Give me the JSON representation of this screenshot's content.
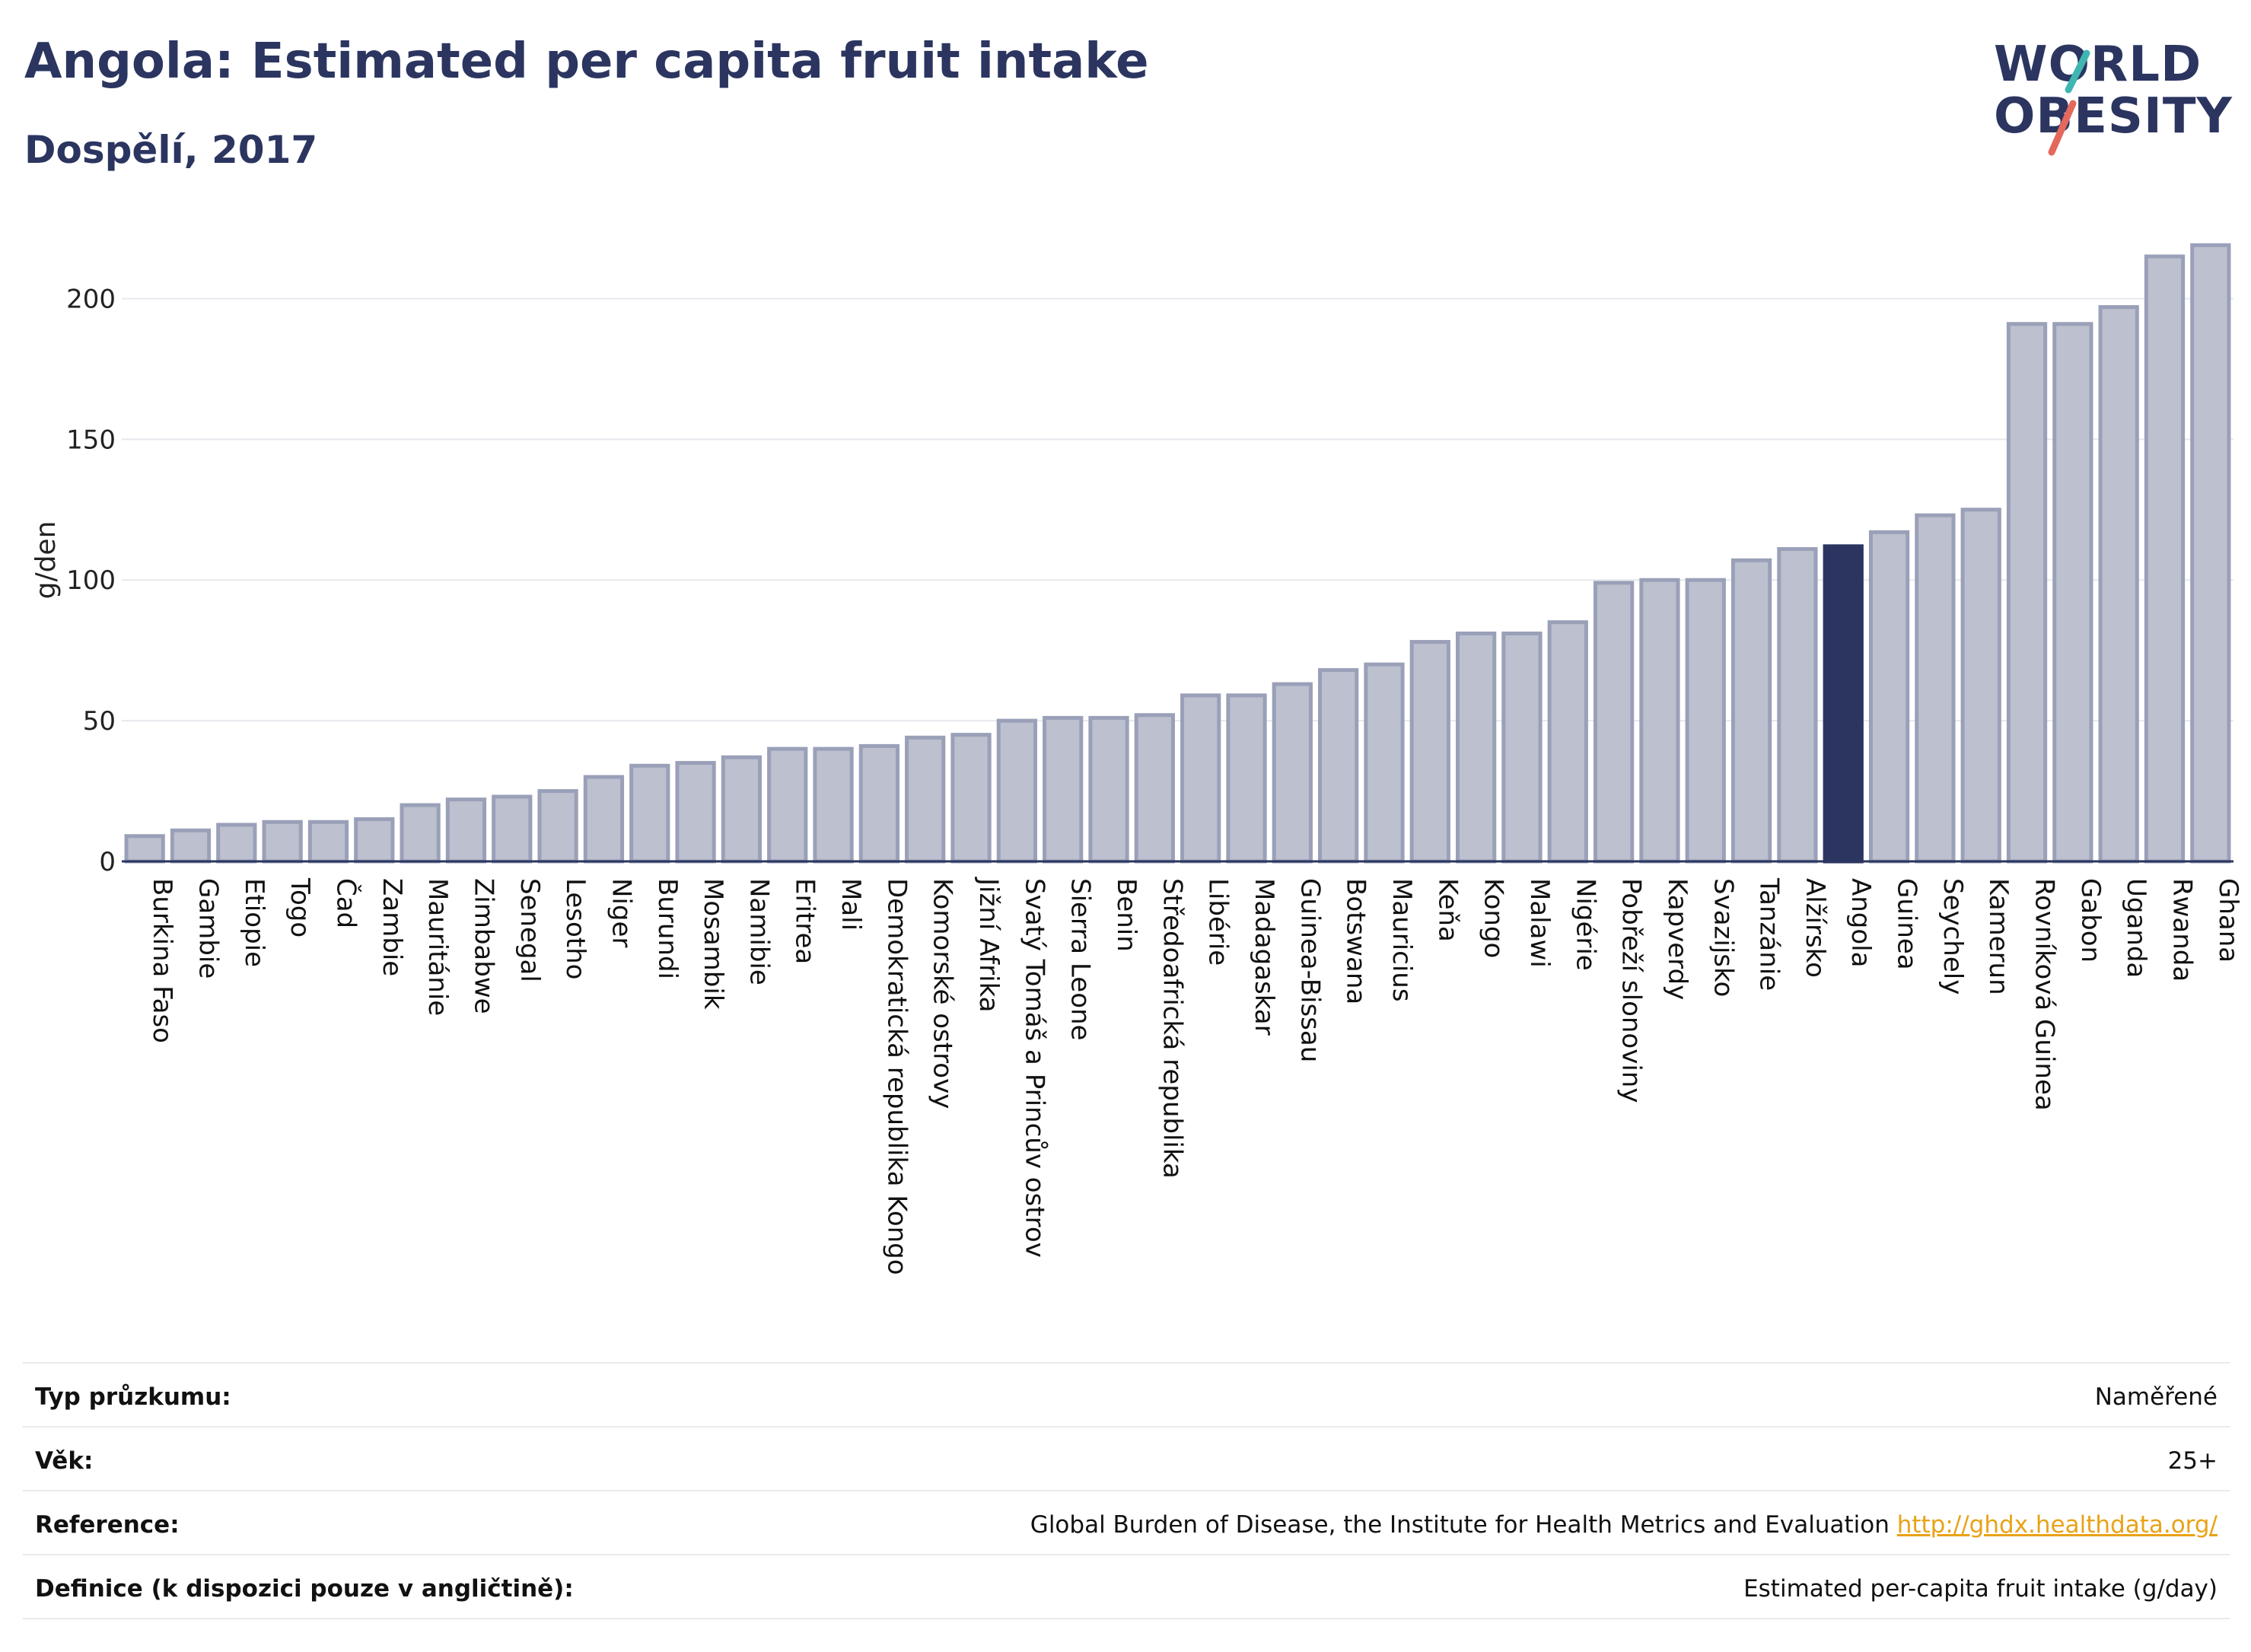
{
  "title": "Angola: Estimated per capita fruit intake",
  "subtitle": "Dospělí, 2017",
  "logo": {
    "line1": "WORLD",
    "line2": "OBESITY",
    "slash_colors": [
      "#3fb6b2",
      "#e4685c"
    ]
  },
  "colors": {
    "bar": "#bcc0cf",
    "bar_border": "#9aa0b8",
    "highlight": "#2b3560",
    "text": "#2b3560",
    "grid": "#e6e8ee"
  },
  "chart_data": {
    "type": "bar",
    "ylabel": "g/den",
    "ylim": [
      0,
      225
    ],
    "yticks": [
      0,
      50,
      100,
      150,
      200
    ],
    "grid": true,
    "highlight": "Angola",
    "categories": [
      "Burkina Faso",
      "Gambie",
      "Etiopie",
      "Togo",
      "Čad",
      "Zambie",
      "Mauritánie",
      "Zimbabwe",
      "Senegal",
      "Lesotho",
      "Niger",
      "Burundi",
      "Mosambik",
      "Namibie",
      "Eritrea",
      "Mali",
      "Demokratická republika Kongo",
      "Komorské ostrovy",
      "Jižní Afrika",
      "Svatý Tomáš a Princův ostrov",
      "Sierra Leone",
      "Benin",
      "Středoafrická republika",
      "Libérie",
      "Madagaskar",
      "Guinea-Bissau",
      "Botswana",
      "Mauricius",
      "Keňa",
      "Kongo",
      "Malawi",
      "Nigérie",
      "Pobřeží slonoviny",
      "Kapverdy",
      "Svazijsko",
      "Tanzánie",
      "Alžírsko",
      "Angola",
      "Guinea",
      "Seychely",
      "Kamerun",
      "Rovníková Guinea",
      "Gabon",
      "Uganda",
      "Rwanda",
      "Ghana"
    ],
    "values": [
      9,
      11,
      13,
      14,
      14,
      15,
      20,
      22,
      23,
      25,
      30,
      34,
      35,
      37,
      40,
      40,
      41,
      44,
      45,
      50,
      51,
      51,
      52,
      59,
      59,
      63,
      68,
      70,
      78,
      81,
      81,
      85,
      99,
      100,
      100,
      107,
      111,
      112,
      117,
      123,
      125,
      191,
      191,
      197,
      215,
      219
    ]
  },
  "info": [
    {
      "label": "Typ průzkumu:",
      "value": "Naměřené"
    },
    {
      "label": "Věk:",
      "value": "25+"
    },
    {
      "label": "Reference:",
      "value": "Global Burden of Disease, the Institute for Health Metrics and Evaluation",
      "link": "http://ghdx.healthdata.org/"
    },
    {
      "label": "Definice (k dispozici pouze v angličtině):",
      "value": "Estimated per-capita fruit intake (g/day)"
    }
  ]
}
